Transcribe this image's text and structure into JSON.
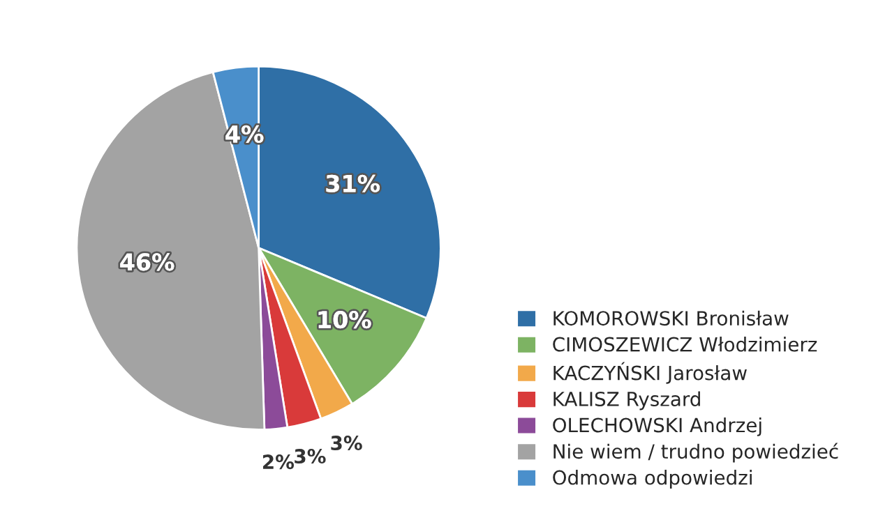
{
  "chart_data": {
    "type": "pie",
    "categories": [
      "KOMOROWSKI Bronisław",
      "CIMOSZEWICZ Włodzimierz",
      "KACZYŃSKI Jarosław",
      "KALISZ Ryszard",
      "OLECHOWSKI Andrzej",
      "Nie wiem / trudno powiedzieć",
      "Odmowa odpowiedzi"
    ],
    "values": [
      31,
      10,
      3,
      3,
      2,
      46,
      4
    ],
    "colors": [
      "#2f6fa6",
      "#7db363",
      "#f2a94a",
      "#d93a3a",
      "#8c4b99",
      "#a3a3a3",
      "#4a8fcb"
    ],
    "value_labels": [
      "31%",
      "10%",
      "3%",
      "3%",
      "2%",
      "46%",
      "4%"
    ],
    "legend": "bottom right"
  }
}
